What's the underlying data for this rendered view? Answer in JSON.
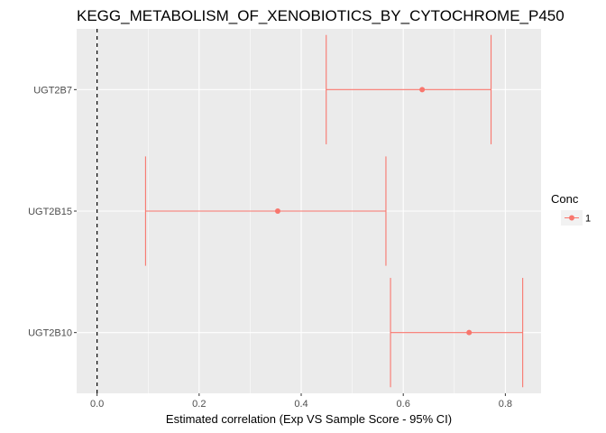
{
  "chart_data": {
    "type": "errorbar",
    "title": "KEGG_METABOLISM_OF_XENOBIOTICS_BY_CYTOCHROME_P450",
    "xlabel": "Estimated correlation (Exp VS Sample Score - 95% CI)",
    "ylabel": "",
    "xlim": [
      -0.04,
      0.87
    ],
    "x_ticks": [
      0.0,
      0.2,
      0.4,
      0.6,
      0.8
    ],
    "x_tick_labels": [
      "0.0",
      "0.2",
      "0.4",
      "0.6",
      "0.8"
    ],
    "categories": [
      "UGT2B7",
      "UGT2B15",
      "UGT2B10"
    ],
    "estimates": [
      0.637,
      0.354,
      0.729
    ],
    "ci_lower": [
      0.449,
      0.095,
      0.575
    ],
    "ci_upper": [
      0.772,
      0.566,
      0.834
    ],
    "reference_line_x": 0,
    "grid": true,
    "legend": {
      "title": "Conc",
      "position": "right",
      "entries": [
        {
          "label": "1",
          "color": "#F8766D"
        }
      ]
    },
    "colors": {
      "series": "#F8766D",
      "panel_bg": "#EBEBEB",
      "grid": "#FFFFFF",
      "reference_line": "#000000"
    }
  }
}
